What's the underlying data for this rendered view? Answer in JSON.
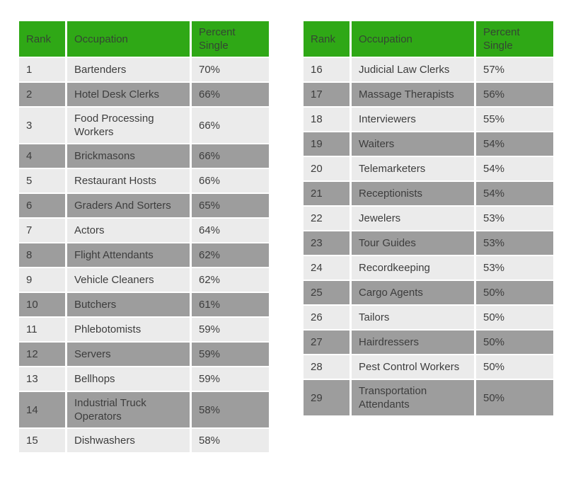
{
  "colors": {
    "header_green": "#2fa816",
    "header_text": "#344633",
    "row_light": "#ebebeb",
    "row_dark": "#9d9d9d",
    "body_text": "#3d3d3d",
    "divider_white": "#ffffff"
  },
  "chart_data": [
    {
      "type": "table",
      "columns": [
        "Rank",
        "Occupation",
        "Percent Single"
      ],
      "rows": [
        [
          "1",
          "Bartenders",
          "70%"
        ],
        [
          "2",
          "Hotel Desk Clerks",
          "66%"
        ],
        [
          "3",
          "Food Processing Workers",
          "66%"
        ],
        [
          "4",
          "Brickmasons",
          "66%"
        ],
        [
          "5",
          "Restaurant Hosts",
          "66%"
        ],
        [
          "6",
          "Graders And Sorters",
          "65%"
        ],
        [
          "7",
          "Actors",
          "64%"
        ],
        [
          "8",
          "Flight Attendants",
          "62%"
        ],
        [
          "9",
          "Vehicle Cleaners",
          "62%"
        ],
        [
          "10",
          "Butchers",
          "61%"
        ],
        [
          "11",
          "Phlebotomists",
          "59%"
        ],
        [
          "12",
          "Servers",
          "59%"
        ],
        [
          "13",
          "Bellhops",
          "59%"
        ],
        [
          "14",
          "Industrial Truck Operators",
          "58%"
        ],
        [
          "15",
          "Dishwashers",
          "58%"
        ]
      ]
    },
    {
      "type": "table",
      "columns": [
        "Rank",
        "Occupation",
        "Percent Single"
      ],
      "rows": [
        [
          "16",
          "Judicial Law Clerks",
          "57%"
        ],
        [
          "17",
          "Massage Therapists",
          "56%"
        ],
        [
          "18",
          "Interviewers",
          "55%"
        ],
        [
          "19",
          "Waiters",
          "54%"
        ],
        [
          "20",
          "Telemarketers",
          "54%"
        ],
        [
          "21",
          "Receptionists",
          "54%"
        ],
        [
          "22",
          "Jewelers",
          "53%"
        ],
        [
          "23",
          "Tour Guides",
          "53%"
        ],
        [
          "24",
          "Recordkeeping",
          "53%"
        ],
        [
          "25",
          "Cargo Agents",
          "50%"
        ],
        [
          "26",
          "Tailors",
          "50%"
        ],
        [
          "27",
          "Hairdressers",
          "50%"
        ],
        [
          "28",
          "Pest Control Workers",
          "50%"
        ],
        [
          "29",
          "Transportation Attendants",
          "50%"
        ]
      ]
    }
  ]
}
